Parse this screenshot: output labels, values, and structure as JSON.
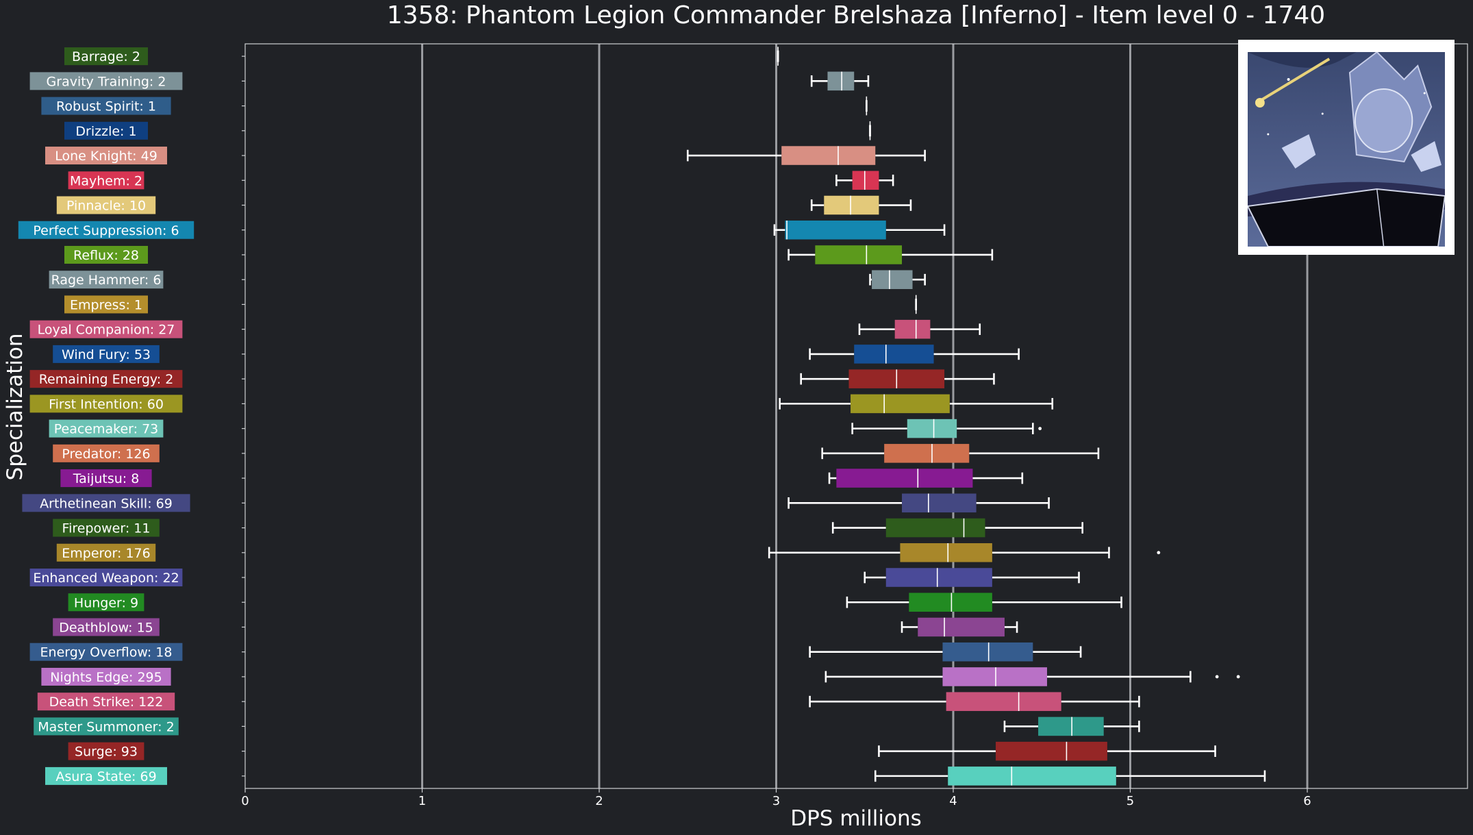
{
  "chart_data": {
    "type": "box",
    "orientation": "horizontal",
    "title": "1358: Phantom Legion Commander Brelshaza [Inferno] - Item level 0 - 1740",
    "xlabel": "DPS millions",
    "ylabel": "Specialization",
    "xlim": [
      0,
      6.9
    ],
    "xticks": [
      0,
      1,
      2,
      3,
      4,
      5,
      6
    ],
    "grid": "vertical",
    "colors": {
      "background": "#202226",
      "grid": "#9a9ca0",
      "axis": "#cfd1d4",
      "text": "#ffffff"
    },
    "series": [
      {
        "label": "Barrage: 2",
        "color": "#2e5c1c",
        "whislo": 3.01,
        "q1": 3.01,
        "med": 3.01,
        "q3": 3.01,
        "whishi": 3.01,
        "fliers": []
      },
      {
        "label": "Gravity Training: 2",
        "color": "#7d9298",
        "whislo": 3.2,
        "q1": 3.29,
        "med": 3.37,
        "q3": 3.44,
        "whishi": 3.52,
        "fliers": []
      },
      {
        "label": "Robust Spirit: 1",
        "color": "#2f5d8a",
        "whislo": 3.51,
        "q1": 3.51,
        "med": 3.51,
        "q3": 3.51,
        "whishi": 3.51,
        "fliers": []
      },
      {
        "label": "Drizzle: 1",
        "color": "#0f3f80",
        "whislo": 3.53,
        "q1": 3.53,
        "med": 3.53,
        "q3": 3.53,
        "whishi": 3.53,
        "fliers": []
      },
      {
        "label": "Lone Knight: 49",
        "color": "#d88f83",
        "whislo": 2.5,
        "q1": 3.03,
        "med": 3.35,
        "q3": 3.56,
        "whishi": 3.84,
        "fliers": []
      },
      {
        "label": "Mayhem: 2",
        "color": "#d83553",
        "whislo": 3.34,
        "q1": 3.43,
        "med": 3.5,
        "q3": 3.58,
        "whishi": 3.66,
        "fliers": []
      },
      {
        "label": "Pinnacle: 10",
        "color": "#e3c97a",
        "whislo": 3.2,
        "q1": 3.27,
        "med": 3.42,
        "q3": 3.58,
        "whishi": 3.76,
        "fliers": []
      },
      {
        "label": "Perfect Suppression: 6",
        "color": "#1487b0",
        "whislo": 2.99,
        "q1": 3.05,
        "med": 3.06,
        "q3": 3.62,
        "whishi": 3.95,
        "fliers": []
      },
      {
        "label": "Reflux: 28",
        "color": "#5c9a1c",
        "whislo": 3.07,
        "q1": 3.22,
        "med": 3.51,
        "q3": 3.71,
        "whishi": 4.22,
        "fliers": []
      },
      {
        "label": "Rage Hammer: 6",
        "color": "#7d9298",
        "whislo": 3.53,
        "q1": 3.54,
        "med": 3.64,
        "q3": 3.77,
        "whishi": 3.84,
        "fliers": []
      },
      {
        "label": "Empress: 1",
        "color": "#b48e2c",
        "whislo": 3.79,
        "q1": 3.79,
        "med": 3.79,
        "q3": 3.79,
        "whishi": 3.79,
        "fliers": []
      },
      {
        "label": "Loyal Companion: 27",
        "color": "#c8527a",
        "whislo": 3.47,
        "q1": 3.67,
        "med": 3.79,
        "q3": 3.87,
        "whishi": 4.15,
        "fliers": []
      },
      {
        "label": "Wind Fury: 53",
        "color": "#154e94",
        "whislo": 3.19,
        "q1": 3.44,
        "med": 3.62,
        "q3": 3.89,
        "whishi": 4.37,
        "fliers": []
      },
      {
        "label": "Remaining Energy: 2",
        "color": "#952626",
        "whislo": 3.14,
        "q1": 3.41,
        "med": 3.68,
        "q3": 3.95,
        "whishi": 4.23,
        "fliers": []
      },
      {
        "label": "First Intention: 60",
        "color": "#9b9622",
        "whislo": 3.02,
        "q1": 3.42,
        "med": 3.61,
        "q3": 3.98,
        "whishi": 4.56,
        "fliers": []
      },
      {
        "label": "Peacemaker: 73",
        "color": "#6dc3b5",
        "whislo": 3.43,
        "q1": 3.74,
        "med": 3.89,
        "q3": 4.02,
        "whishi": 4.45,
        "fliers": [
          4.49
        ]
      },
      {
        "label": "Predator: 126",
        "color": "#cf704e",
        "whislo": 3.26,
        "q1": 3.61,
        "med": 3.88,
        "q3": 4.09,
        "whishi": 4.82,
        "fliers": []
      },
      {
        "label": "Taijutsu: 8",
        "color": "#871b92",
        "whislo": 3.3,
        "q1": 3.34,
        "med": 3.8,
        "q3": 4.11,
        "whishi": 4.39,
        "fliers": []
      },
      {
        "label": "Arthetinean Skill: 69",
        "color": "#444882",
        "whislo": 3.07,
        "q1": 3.71,
        "med": 3.86,
        "q3": 4.13,
        "whishi": 4.54,
        "fliers": []
      },
      {
        "label": "Firepower: 11",
        "color": "#2e5c1c",
        "whislo": 3.32,
        "q1": 3.62,
        "med": 4.06,
        "q3": 4.18,
        "whishi": 4.73,
        "fliers": []
      },
      {
        "label": "Emperor: 176",
        "color": "#a8872a",
        "whislo": 2.96,
        "q1": 3.7,
        "med": 3.97,
        "q3": 4.22,
        "whishi": 4.88,
        "fliers": [
          5.16
        ]
      },
      {
        "label": "Enhanced Weapon: 22",
        "color": "#4a4a98",
        "whislo": 3.5,
        "q1": 3.62,
        "med": 3.91,
        "q3": 4.22,
        "whishi": 4.71,
        "fliers": []
      },
      {
        "label": "Hunger: 9",
        "color": "#228b22",
        "whislo": 3.4,
        "q1": 3.75,
        "med": 3.99,
        "q3": 4.22,
        "whishi": 4.95,
        "fliers": []
      },
      {
        "label": "Deathblow: 15",
        "color": "#8b4592",
        "whislo": 3.71,
        "q1": 3.8,
        "med": 3.95,
        "q3": 4.29,
        "whishi": 4.36,
        "fliers": []
      },
      {
        "label": "Energy Overflow: 18",
        "color": "#355c8e",
        "whislo": 3.19,
        "q1": 3.94,
        "med": 4.2,
        "q3": 4.45,
        "whishi": 4.72,
        "fliers": []
      },
      {
        "label": "Nights Edge: 295",
        "color": "#b971c6",
        "whislo": 3.28,
        "q1": 3.94,
        "med": 4.24,
        "q3": 4.53,
        "whishi": 5.34,
        "fliers": [
          5.49,
          5.61
        ]
      },
      {
        "label": "Death Strike: 122",
        "color": "#c8527a",
        "whislo": 3.19,
        "q1": 3.96,
        "med": 4.37,
        "q3": 4.61,
        "whishi": 5.05,
        "fliers": []
      },
      {
        "label": "Master Summoner: 2",
        "color": "#2e998a",
        "whislo": 4.29,
        "q1": 4.48,
        "med": 4.67,
        "q3": 4.85,
        "whishi": 5.05,
        "fliers": []
      },
      {
        "label": "Surge: 93",
        "color": "#952626",
        "whislo": 3.58,
        "q1": 4.24,
        "med": 4.64,
        "q3": 4.87,
        "whishi": 5.48,
        "fliers": []
      },
      {
        "label": "Asura State: 69",
        "color": "#58d0be",
        "whislo": 3.56,
        "q1": 3.97,
        "med": 4.33,
        "q3": 4.92,
        "whishi": 5.76,
        "fliers": []
      }
    ]
  }
}
